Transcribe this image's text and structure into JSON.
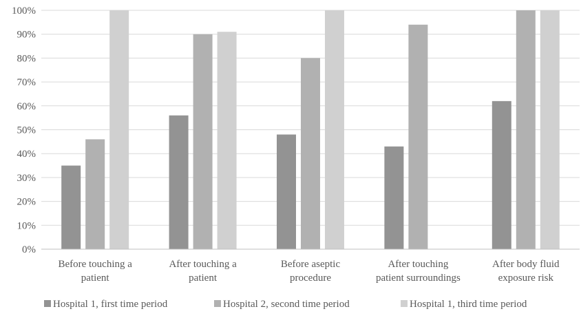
{
  "chart_data": {
    "type": "bar",
    "categories": [
      [
        "Before touching a",
        "patient"
      ],
      [
        "After touching a",
        "patient"
      ],
      [
        "Before aseptic",
        "procedure"
      ],
      [
        "After touching",
        "patient surroundings"
      ],
      [
        "After body fluid",
        "exposure risk"
      ]
    ],
    "series": [
      {
        "name": "Hospital 1, first time period",
        "color": "#939393",
        "values": [
          35,
          56,
          48,
          43,
          62
        ]
      },
      {
        "name": "Hospital 2, second time period",
        "color": "#b1b1b1",
        "values": [
          46,
          90,
          80,
          94,
          100
        ]
      },
      {
        "name": "Hospital 1, third time period",
        "color": "#d0d0d0",
        "values": [
          100,
          91,
          100,
          null,
          100
        ]
      }
    ],
    "ylim": [
      0,
      100
    ],
    "yticks": [
      "0%",
      "10%",
      "20%",
      "30%",
      "40%",
      "50%",
      "60%",
      "70%",
      "80%",
      "90%",
      "100%"
    ],
    "title": "",
    "xlabel": "",
    "ylabel": "",
    "grid": true,
    "legend_position": "bottom"
  }
}
